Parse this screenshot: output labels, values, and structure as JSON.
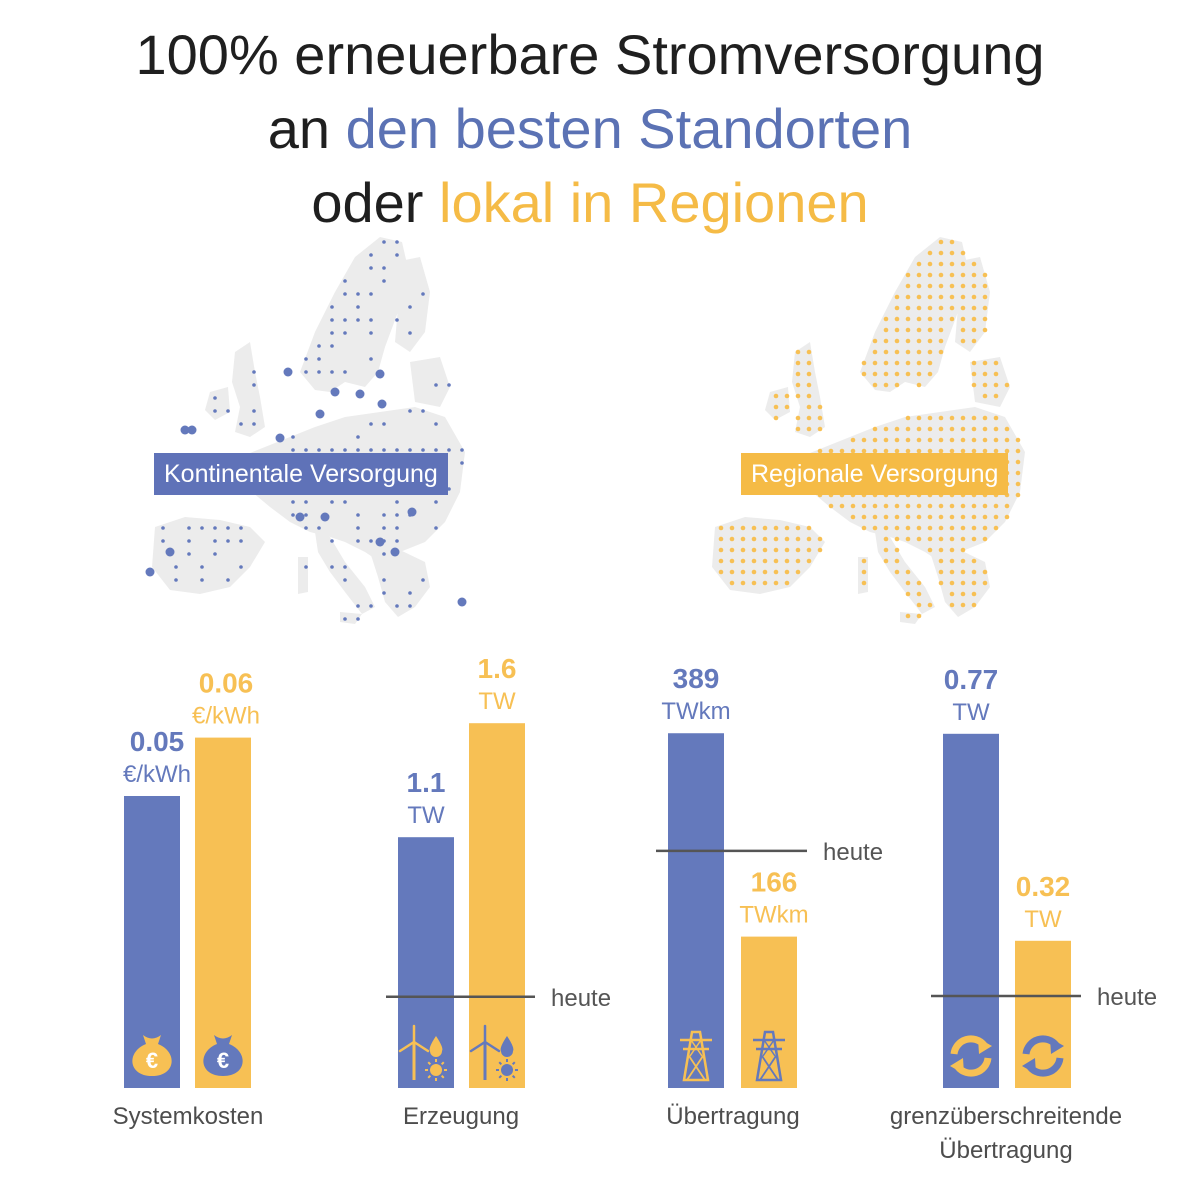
{
  "title": {
    "line1": "100% erneuerbare Stromversorgung",
    "line2_prefix": "an ",
    "line2_highlight": "den besten Standorten",
    "line3_prefix": "oder ",
    "line3_highlight": "lokal in Regionen"
  },
  "maps": {
    "left_label": "Kontinentale Versorgung",
    "right_label": "Regionale Versorgung"
  },
  "colors": {
    "blue": "#6479bc",
    "yellow": "#f7c054",
    "map_gray": "#ececec",
    "heute_line": "#555555"
  },
  "icons": {
    "Systemkosten": "money-bag-euro-icon",
    "Erzeugung": "wind-water-sun-icon",
    "Übertragung": "power-pylon-icon",
    "grenzüberschreitende Übertragung": "exchange-arrows-icon"
  },
  "chart_data": {
    "type": "bar",
    "heute_label": "heute",
    "groups": [
      {
        "category": [
          "Systemkosten"
        ],
        "bars": [
          {
            "value": 0.05,
            "value_label": "0.05",
            "unit": "€/kWh",
            "color": "blue"
          },
          {
            "value": 0.06,
            "value_label": "0.06",
            "unit": "€/kWh",
            "color": "yellow"
          }
        ],
        "heute": null
      },
      {
        "category": [
          "Erzeugung"
        ],
        "bars": [
          {
            "value": 1.1,
            "value_label": "1.1",
            "unit": "TW",
            "color": "blue"
          },
          {
            "value": 1.6,
            "value_label": "1.6",
            "unit": "TW",
            "color": "yellow"
          }
        ],
        "heute": 0.4
      },
      {
        "category": [
          "Übertragung"
        ],
        "bars": [
          {
            "value": 389,
            "value_label": "389",
            "unit": "TWkm",
            "color": "blue"
          },
          {
            "value": 166,
            "value_label": "166",
            "unit": "TWkm",
            "color": "yellow"
          }
        ],
        "heute": 260
      },
      {
        "category": [
          "grenzüberschreitende",
          "Übertragung"
        ],
        "bars": [
          {
            "value": 0.77,
            "value_label": "0.77",
            "unit": "TW",
            "color": "blue"
          },
          {
            "value": 0.32,
            "value_label": "0.32",
            "unit": "TW",
            "color": "yellow"
          }
        ],
        "heute": 0.2
      }
    ]
  }
}
